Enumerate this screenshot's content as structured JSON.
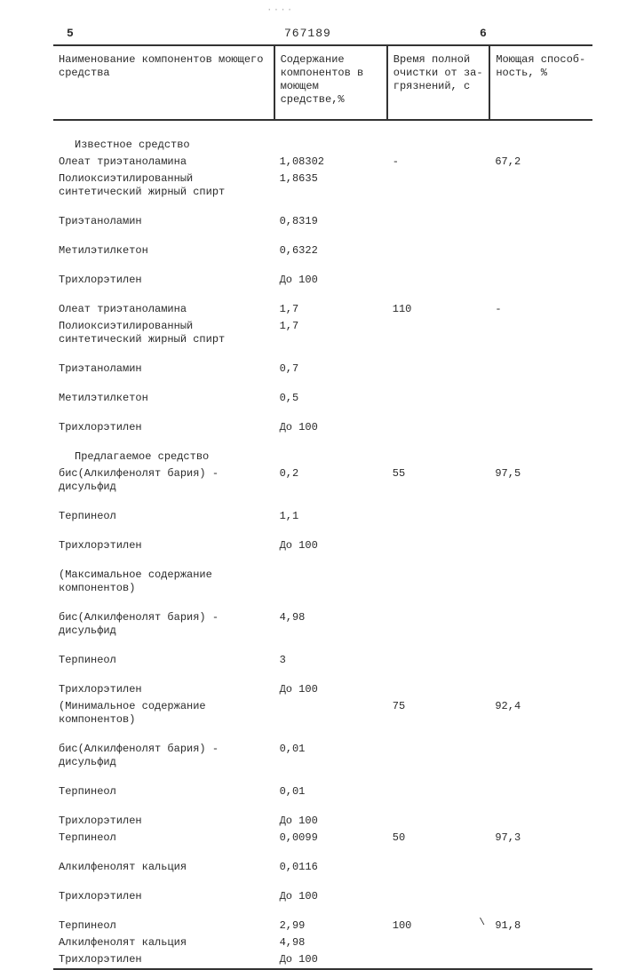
{
  "document_number": "767189",
  "page_mark_left": "5",
  "page_mark_right": "6",
  "smudge": "····",
  "headers": {
    "name": "Наименование компонентов моющего средства",
    "content": "Содержание компонентов в моющем средстве,%",
    "time": "Время полной очистки от за- грязнений, с",
    "ability": "Моющая способ- ность, %"
  },
  "sections": {
    "known": "Известное средство",
    "proposed": "Предлагаемое средство",
    "max_note": "(Максимальное содержание компонентов)",
    "min_note": "(Минимальное содержание компонентов)"
  },
  "rows": [
    {
      "name": "Олеат триэтаноламина",
      "val": "1,08302",
      "time": "-",
      "ability": "67,2"
    },
    {
      "name": "Полиоксиэтилированный синтетический жирный спирт",
      "val": "1,8635"
    },
    {
      "name": "Триэтаноламин",
      "val": "0,8319"
    },
    {
      "name": "Метилэтилкетон",
      "val": "0,6322"
    },
    {
      "name": "Трихлорэтилен",
      "val": "До 100"
    },
    {
      "name": "Олеат триэтаноламина",
      "val": "1,7",
      "time": "110",
      "ability": "-"
    },
    {
      "name": "Полиоксиэтилированный синтетический жирный спирт",
      "val": "1,7"
    },
    {
      "name": "Триэтаноламин",
      "val": "0,7"
    },
    {
      "name": "Метилэтилкетон",
      "val": "0,5"
    },
    {
      "name": "Трихлорэтилен",
      "val": "До 100"
    },
    {
      "name": "бис(Алкилфенолят бария) - дисульфид",
      "val": "0,2",
      "time": "55",
      "ability": "97,5"
    },
    {
      "name": "Терпинеол",
      "val": "1,1"
    },
    {
      "name": "Трихлорэтилен",
      "val": "До 100"
    },
    {
      "name": "бис(Алкилфенолят бария) - дисульфид",
      "val": "4,98"
    },
    {
      "name": "Терпинеол",
      "val": "3"
    },
    {
      "name": "Трихлорэтилен",
      "val": "До 100"
    },
    {
      "min_time": "75",
      "min_ability": "92,4"
    },
    {
      "name": "бис(Алкилфенолят бария) - дисульфид",
      "val": "0,01"
    },
    {
      "name": "Терпинеол",
      "val": "0,01"
    },
    {
      "name": "Трихлорэтилен",
      "val": "До 100"
    },
    {
      "name": "Терпинеол",
      "val": "0,0099",
      "time": "50",
      "ability": "97,3"
    },
    {
      "name": "Алкилфенолят кальция",
      "val": "0,0116"
    },
    {
      "name": "Трихлорэтилен",
      "val": "До 100"
    },
    {
      "name": "Терпинеол",
      "val": "2,99",
      "time": "100",
      "ability": "91,8",
      "tick": "\\"
    },
    {
      "name": "Алкилфенолят кальция",
      "val": "4,98"
    },
    {
      "name": "Трихлорэтилен",
      "val": "До 100"
    }
  ]
}
